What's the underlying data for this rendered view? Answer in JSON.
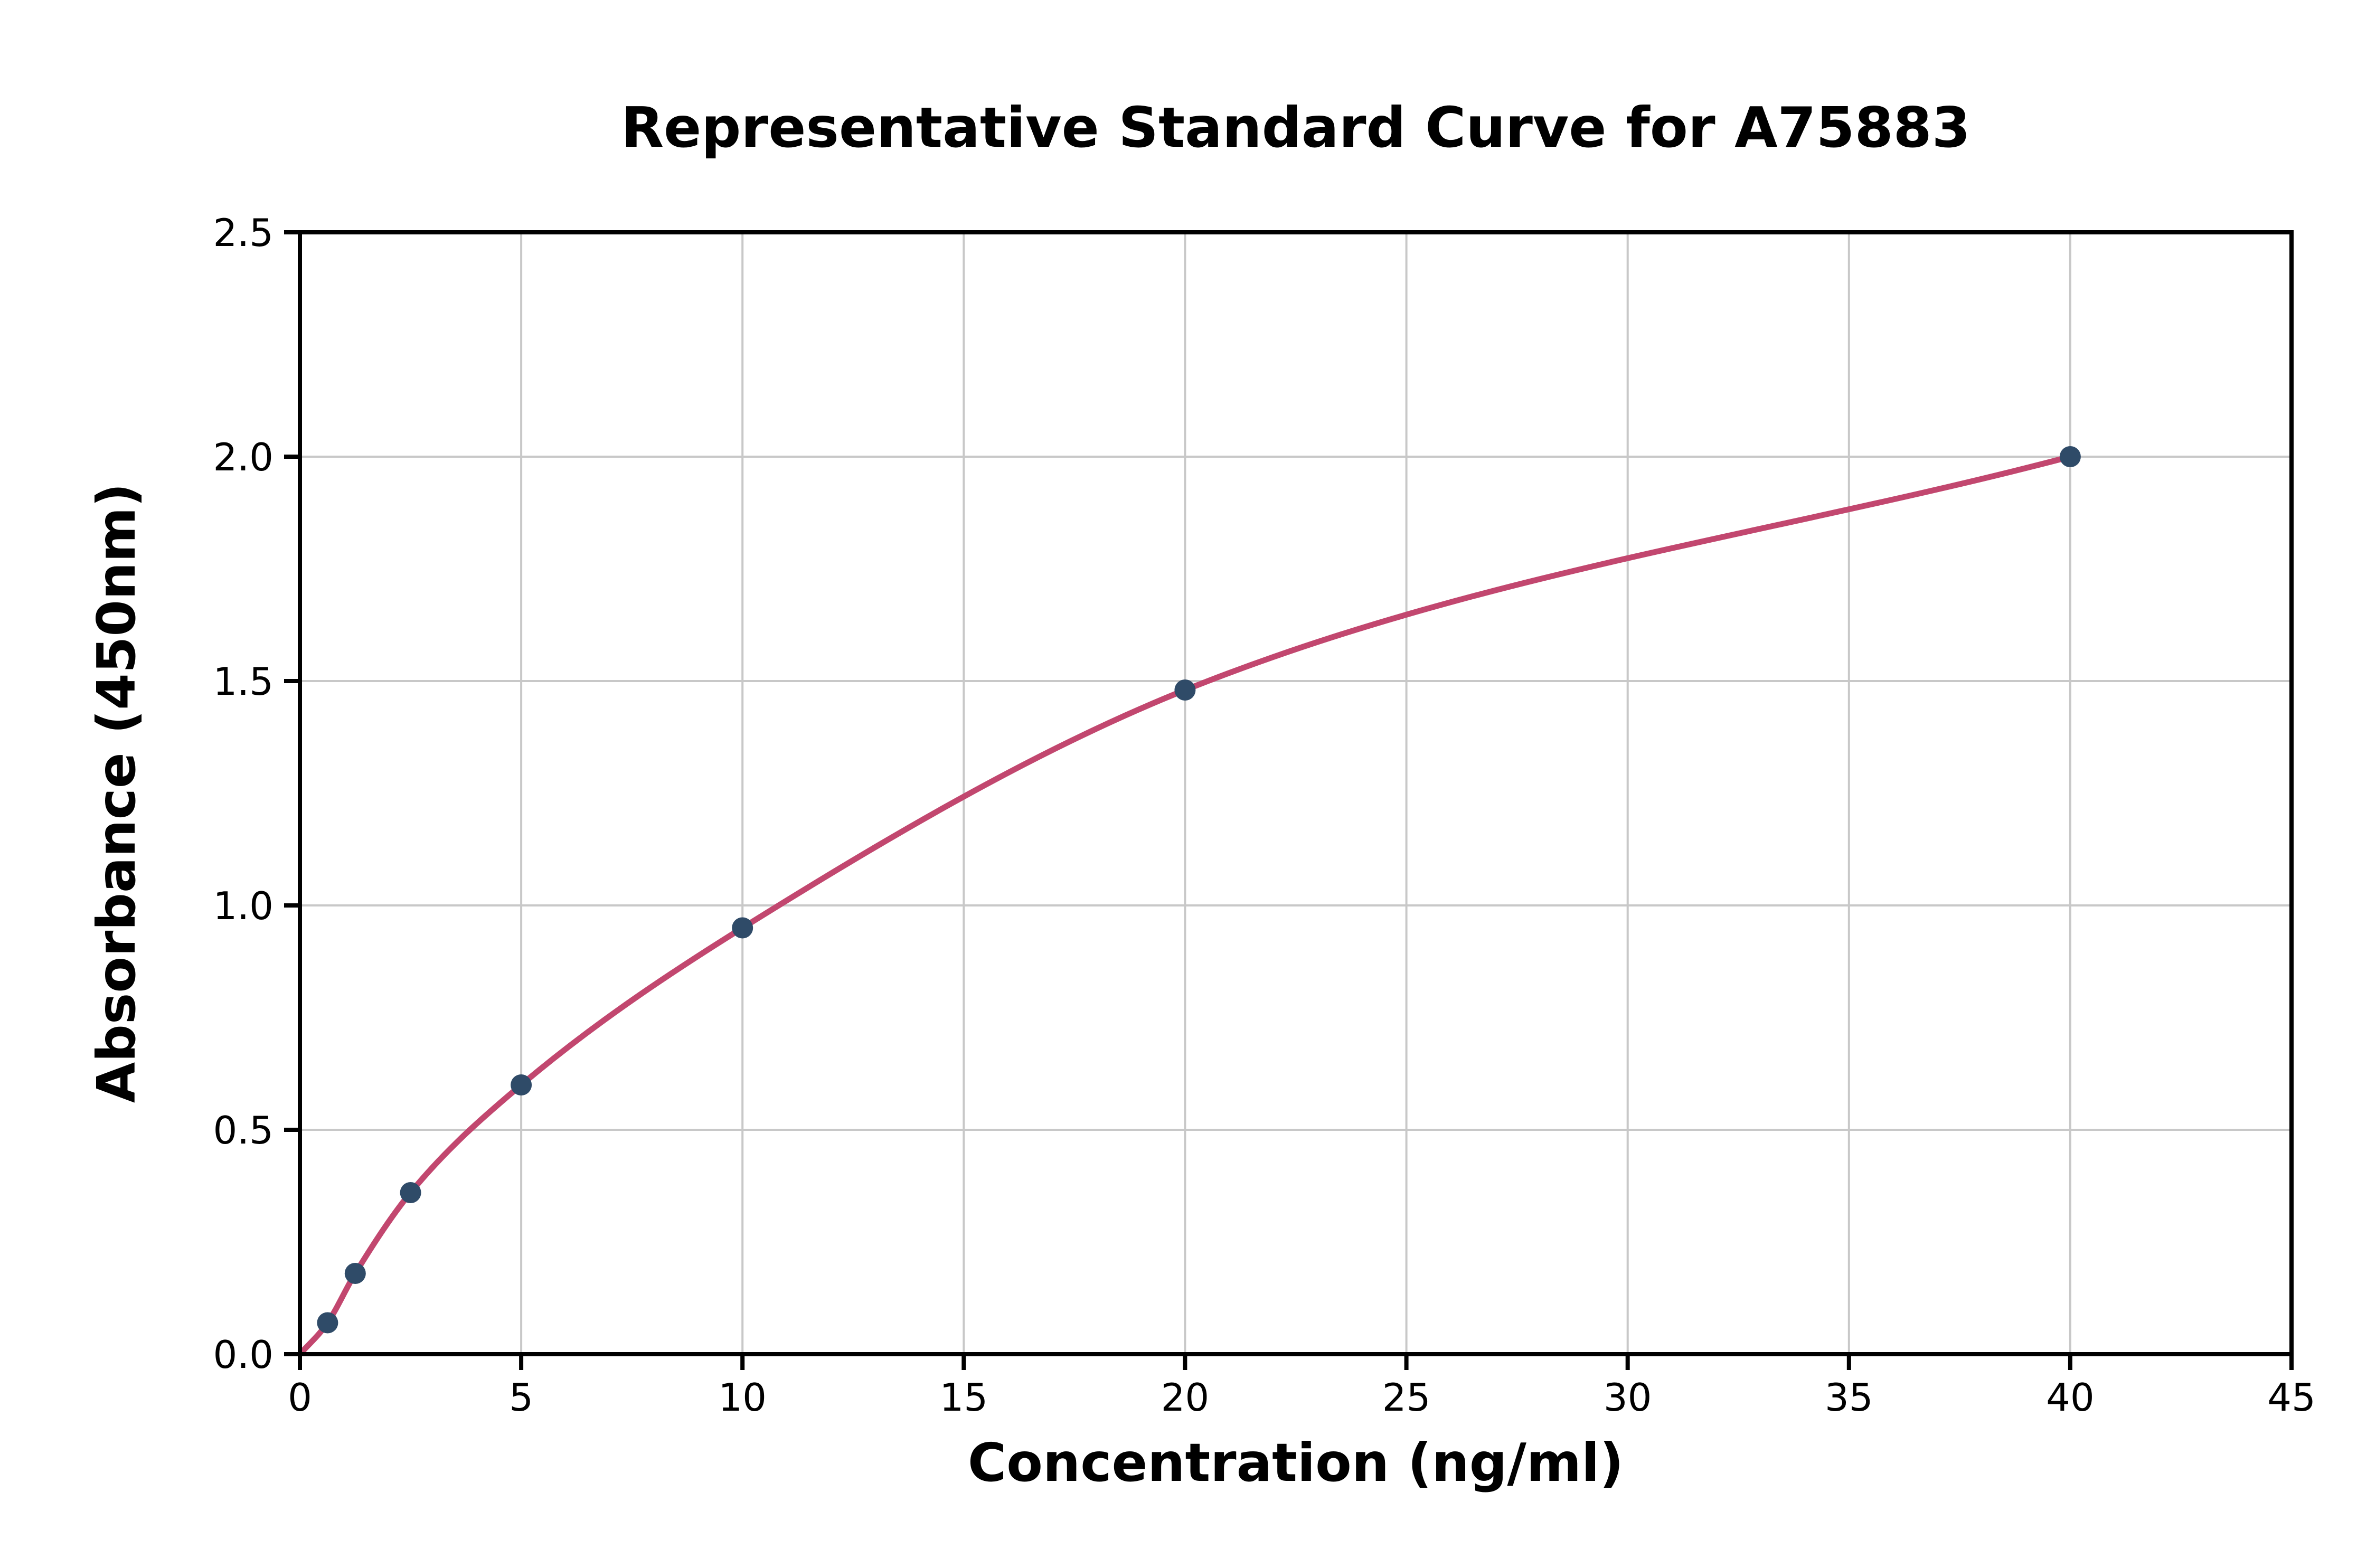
{
  "page": {
    "background": "#ffffff"
  },
  "chart_data": {
    "type": "scatter",
    "title": "Representative Standard Curve for A75883",
    "xlabel": "Concentration (ng/ml)",
    "ylabel": "Absorbance (450nm)",
    "xlim": [
      0,
      45
    ],
    "ylim": [
      0,
      2.5
    ],
    "xticks": [
      0,
      5,
      10,
      15,
      20,
      25,
      30,
      35,
      40,
      45
    ],
    "xtick_labels": [
      "0",
      "5",
      "10",
      "15",
      "20",
      "25",
      "30",
      "35",
      "40",
      "45"
    ],
    "yticks": [
      0,
      0.5,
      1,
      1.5,
      2,
      2.5
    ],
    "ytick_labels": [
      "0.0",
      "0.5",
      "1.0",
      "1.5",
      "2.0",
      "2.5"
    ],
    "grid": true,
    "legend_position": "none",
    "series": [
      {
        "name": "standard-points",
        "type": "scatter",
        "x": [
          0.625,
          1.25,
          2.5,
          5,
          10,
          20,
          40
        ],
        "y": [
          0.07,
          0.18,
          0.36,
          0.6,
          0.95,
          1.48,
          2.0
        ],
        "color": "#2f4b68",
        "marker": "circle"
      },
      {
        "name": "fitted-curve",
        "type": "line",
        "smooth": true,
        "x": [
          0,
          0.625,
          1.25,
          2.5,
          5,
          10,
          20,
          40
        ],
        "y": [
          0,
          0.07,
          0.18,
          0.36,
          0.6,
          0.95,
          1.48,
          2.0
        ],
        "color": "#c2476f"
      }
    ],
    "colors": {
      "grid": "#c8c8c8",
      "axis": "#000000",
      "background": "#ffffff",
      "tick": "#000000"
    }
  }
}
